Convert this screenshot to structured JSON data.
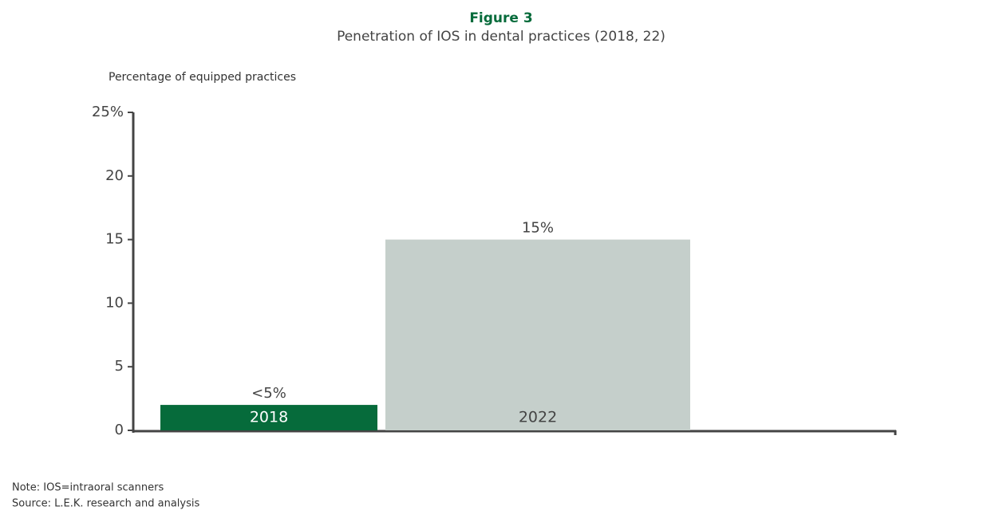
{
  "chart_data": {
    "type": "bar",
    "title": "Figure 3",
    "subtitle": "Penetration of IOS in dental practices (2018, 22)",
    "y_label": "Percentage of equipped practices",
    "categories": [
      "2018",
      "2022"
    ],
    "values": [
      2,
      15
    ],
    "value_labels": [
      "<5%",
      "15%"
    ],
    "colors": [
      "#066b3b",
      "#c5cfcb"
    ],
    "ylim": [
      0,
      25
    ],
    "yticks": [
      0,
      5,
      10,
      15,
      20,
      {
        "value": 25,
        "label": "25%"
      }
    ],
    "notes": [
      "Note: IOS=intraoral scanners",
      "Source: L.E.K. research and analysis"
    ]
  }
}
